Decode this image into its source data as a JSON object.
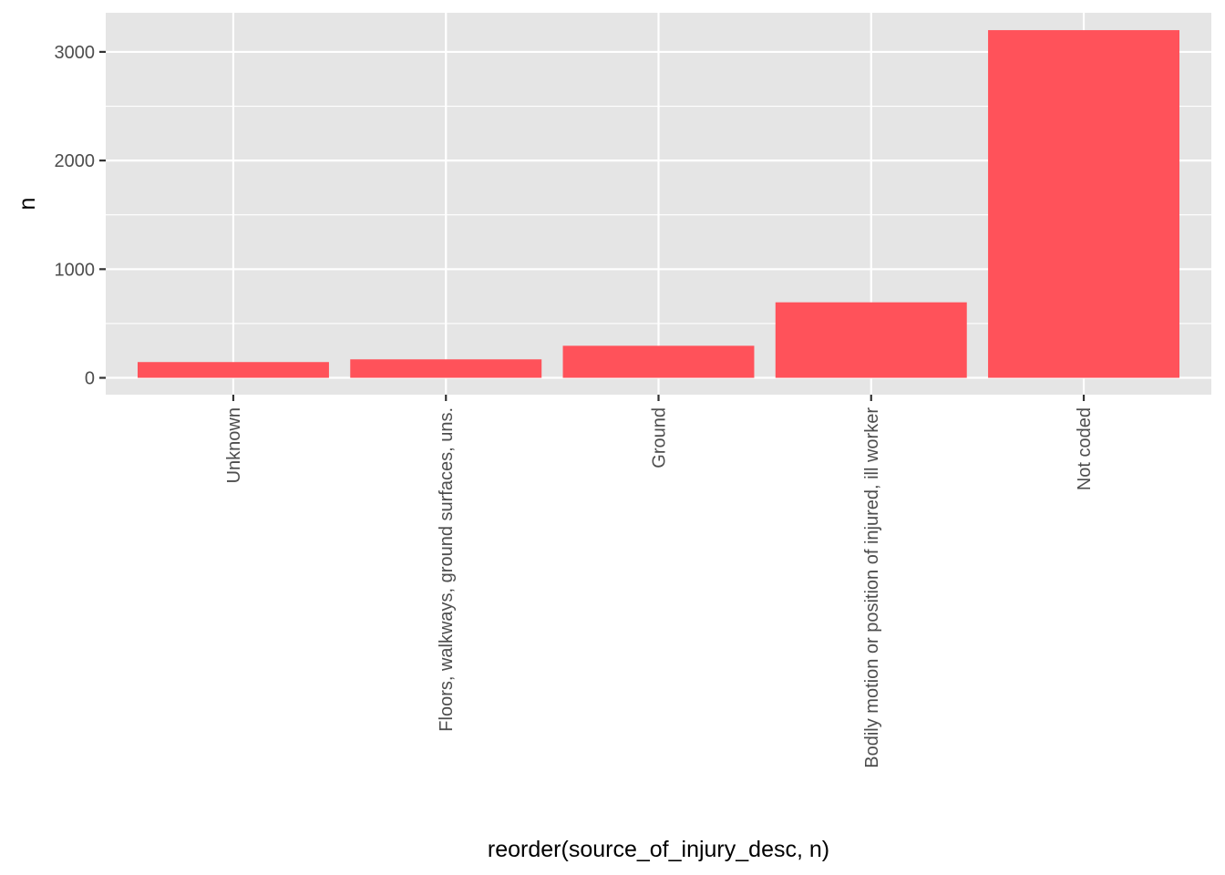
{
  "chart_data": {
    "type": "bar",
    "title": "",
    "xlabel": "reorder(source_of_injury_desc, n)",
    "ylabel": "n",
    "categories": [
      "Unknown",
      "Floors, walkways, ground surfaces, uns.",
      "Ground",
      "Bodily motion or position of injured, ill worker",
      "Not coded"
    ],
    "values": [
      145,
      170,
      295,
      695,
      3200
    ],
    "ylim": [
      -155,
      3360
    ],
    "yticks": [
      0,
      1000,
      2000,
      3000
    ],
    "grid": true,
    "legend": "none",
    "colors": {
      "bar": "#FF525A",
      "panel": "#E5E5E5",
      "grid": "#FFFFFF",
      "tick_text": "#4D4D4D",
      "tick_mark": "#333333",
      "title_text": "#000000"
    }
  }
}
